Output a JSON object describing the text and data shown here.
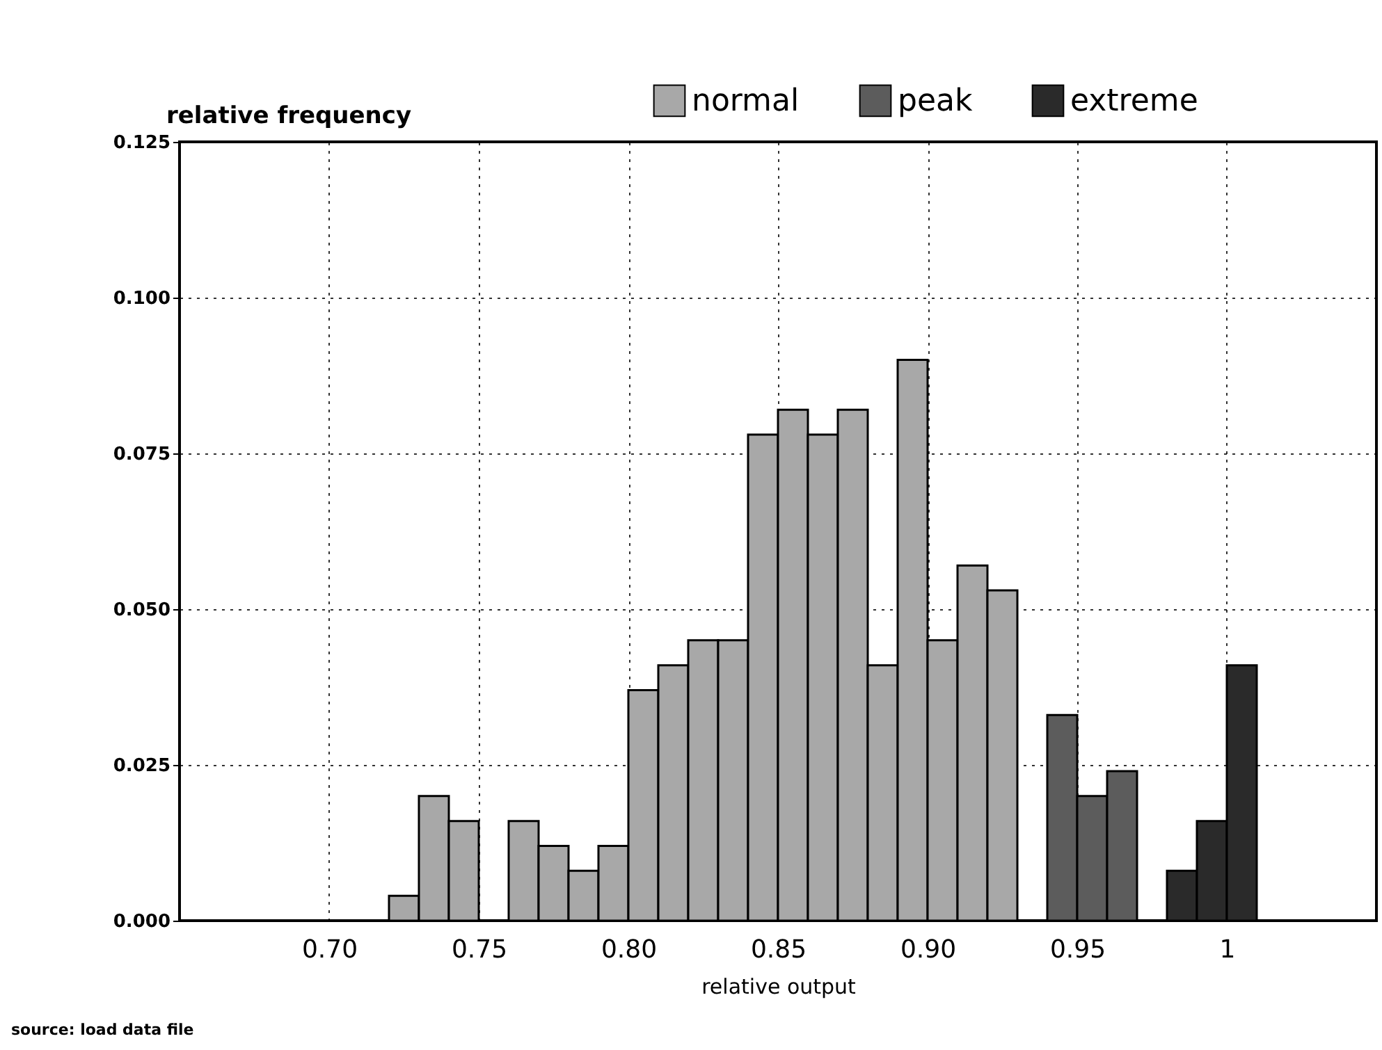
{
  "chart_data": {
    "type": "histogram",
    "xlabel": "relative output",
    "ylabel": "relative frequency",
    "annotations": [
      "source: load data file"
    ],
    "bins": [
      0.72,
      0.73,
      0.74,
      0.75,
      0.76,
      0.77,
      0.78,
      0.79,
      0.8,
      0.81,
      0.82,
      0.83,
      0.84,
      0.85,
      0.86,
      0.87,
      0.88,
      0.89,
      0.9,
      0.91,
      0.92,
      0.93,
      0.94,
      0.95,
      0.96,
      0.97,
      0.98,
      0.99,
      1.0,
      1.01
    ],
    "series": [
      {
        "name": "normal",
        "color": "#a8a8a8",
        "values": [
          0.004,
          0.02,
          0.016,
          null,
          0.016,
          0.012,
          0.008,
          0.012,
          0.037,
          0.041,
          0.045,
          0.045,
          0.078,
          0.082,
          0.078,
          0.082,
          0.041,
          0.09,
          0.045,
          0.057,
          0.053,
          null,
          null,
          null,
          null,
          null,
          null,
          null,
          null
        ]
      },
      {
        "name": "peak",
        "color": "#5c5c5c",
        "values": [
          null,
          null,
          null,
          null,
          null,
          null,
          null,
          null,
          null,
          null,
          null,
          null,
          null,
          null,
          null,
          null,
          null,
          null,
          null,
          null,
          null,
          null,
          0.033,
          0.02,
          0.024,
          null,
          null,
          null,
          null
        ]
      },
      {
        "name": "extreme",
        "color": "#2a2a2a",
        "values": [
          null,
          null,
          null,
          null,
          null,
          null,
          null,
          null,
          null,
          null,
          null,
          null,
          null,
          null,
          null,
          null,
          null,
          null,
          null,
          null,
          null,
          null,
          null,
          null,
          null,
          null,
          0.008,
          0.016,
          0.041
        ]
      }
    ],
    "xlim": [
      0.65,
      1.05
    ],
    "xticks": [
      {
        "value": 0.7,
        "label": "0.70"
      },
      {
        "value": 0.75,
        "label": "0.75"
      },
      {
        "value": 0.8,
        "label": "0.80"
      },
      {
        "value": 0.85,
        "label": "0.85"
      },
      {
        "value": 0.9,
        "label": "0.90"
      },
      {
        "value": 0.95,
        "label": "0.95"
      },
      {
        "value": 1,
        "label": "1"
      }
    ],
    "ylim": [
      0,
      0.125
    ],
    "yticks": [
      {
        "value": 0,
        "label": "0.000"
      },
      {
        "value": 0.025,
        "label": "0.025"
      },
      {
        "value": 0.05,
        "label": "0.050"
      },
      {
        "value": 0.075,
        "label": "0.075"
      },
      {
        "value": 0.1,
        "label": "0.100"
      },
      {
        "value": 0.125,
        "label": "0.125"
      }
    ],
    "grid": true,
    "legend": "top right"
  }
}
